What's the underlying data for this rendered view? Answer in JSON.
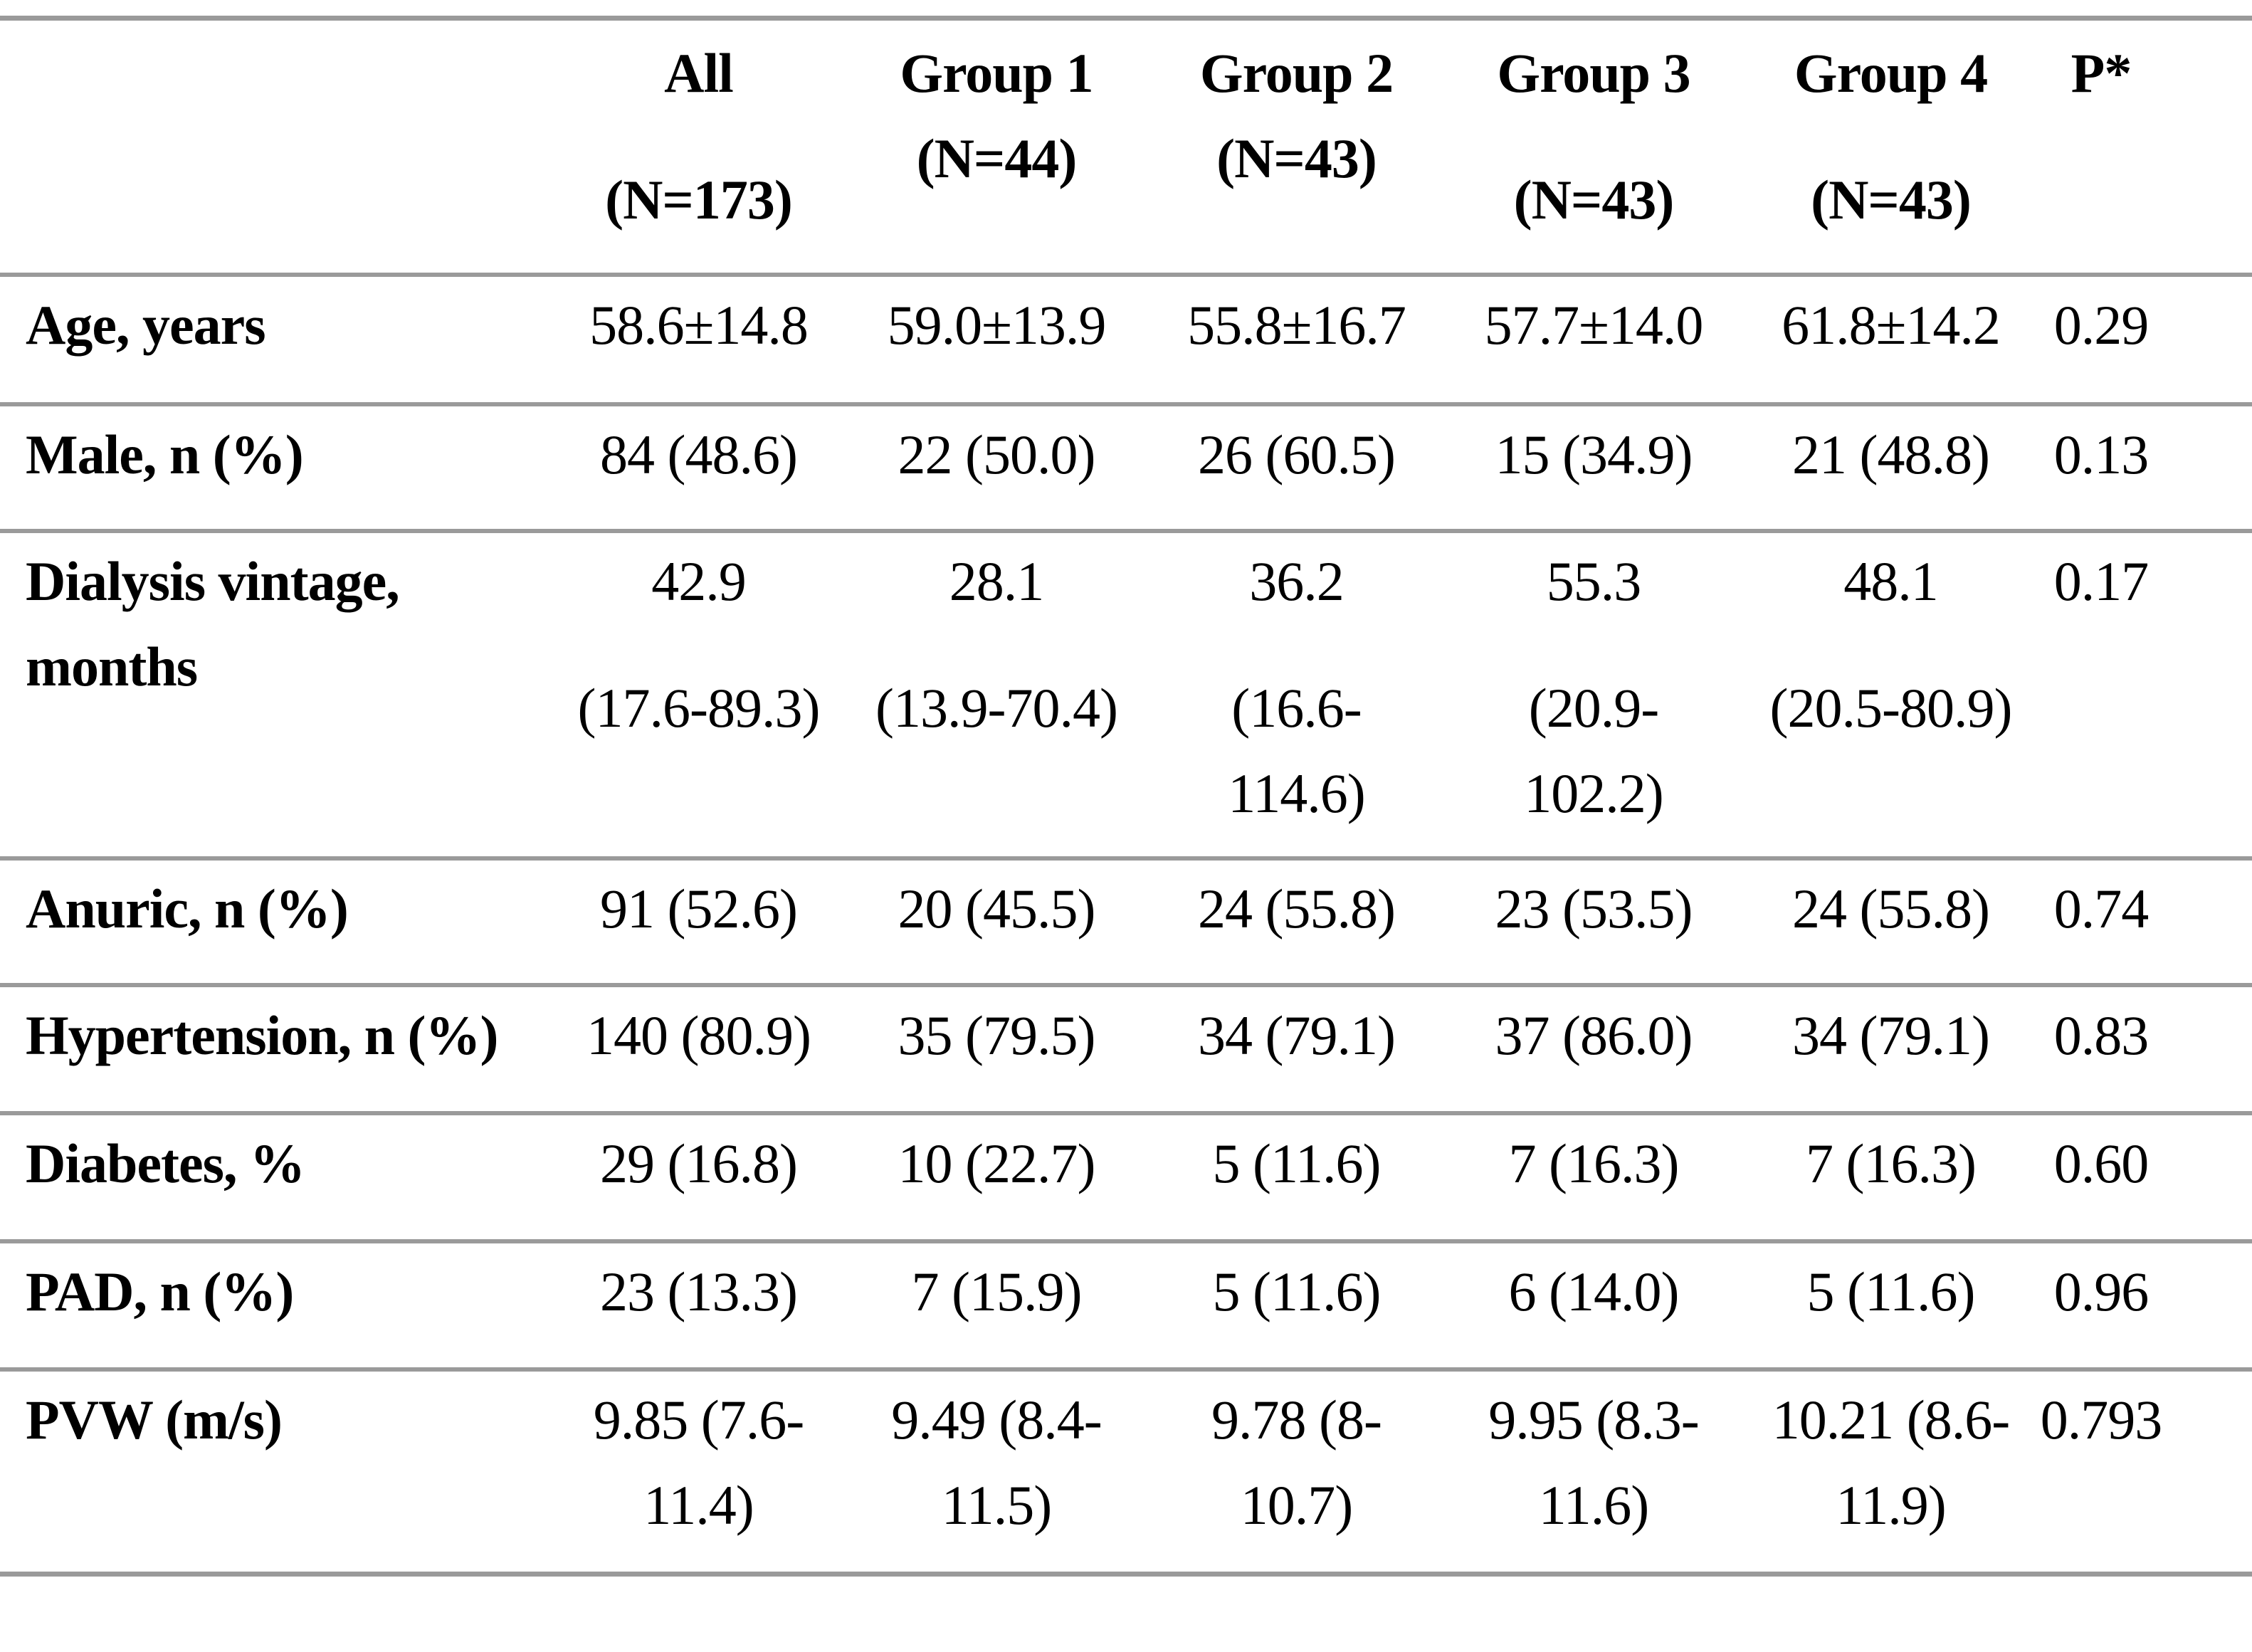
{
  "table": {
    "description": "Baseline characteristics table",
    "border_color": "#9a9a9a",
    "columns": [
      {
        "key": "all",
        "name": "All",
        "n": "(N=173)",
        "n_position": "low"
      },
      {
        "key": "group1",
        "name": "Group 1",
        "n": "(N=44)",
        "n_position": "high"
      },
      {
        "key": "group2",
        "name": "Group 2",
        "n": "(N=43)",
        "n_position": "high"
      },
      {
        "key": "group3",
        "name": "Group 3",
        "n": "(N=43)",
        "n_position": "low"
      },
      {
        "key": "group4",
        "name": "Group 4",
        "n": "(N=43)",
        "n_position": "low"
      },
      {
        "key": "p",
        "name": "P*",
        "n": "",
        "n_position": "none"
      }
    ],
    "rows": [
      {
        "key": "age",
        "label_lines": [
          "Age, years"
        ],
        "cells": [
          [
            "58.6±14.8"
          ],
          [
            "59.0±13.9"
          ],
          [
            "55.8±16.7"
          ],
          [
            "57.7±14.0"
          ],
          [
            "61.8±14.2"
          ],
          [
            "0.29"
          ]
        ]
      },
      {
        "key": "male",
        "label_lines": [
          "Male, n (%)"
        ],
        "cells": [
          [
            "84 (48.6)"
          ],
          [
            "22 (50.0)"
          ],
          [
            "26 (60.5)"
          ],
          [
            "15 (34.9)"
          ],
          [
            "21 (48.8)"
          ],
          [
            "0.13"
          ]
        ]
      },
      {
        "key": "dialysis-vintage",
        "label_lines": [
          "Dialysis vintage,",
          "months"
        ],
        "cells": [
          [
            "42.9",
            "(17.6-89.3)"
          ],
          [
            "28.1",
            "(13.9-70.4)"
          ],
          [
            "36.2",
            "(16.6-",
            "114.6)"
          ],
          [
            "55.3",
            "(20.9-",
            "102.2)"
          ],
          [
            "48.1",
            "(20.5-80.9)"
          ],
          [
            "0.17"
          ]
        ]
      },
      {
        "key": "anuric",
        "label_lines": [
          "Anuric, n (%)"
        ],
        "cells": [
          [
            "91 (52.6)"
          ],
          [
            "20 (45.5)"
          ],
          [
            "24 (55.8)"
          ],
          [
            "23 (53.5)"
          ],
          [
            "24 (55.8)"
          ],
          [
            "0.74"
          ]
        ]
      },
      {
        "key": "hypertension",
        "label_lines": [
          "Hypertension, n (%)"
        ],
        "cells": [
          [
            "140 (80.9)"
          ],
          [
            "35 (79.5)"
          ],
          [
            "34 (79.1)"
          ],
          [
            "37 (86.0)"
          ],
          [
            "34 (79.1)"
          ],
          [
            "0.83"
          ]
        ]
      },
      {
        "key": "diabetes",
        "label_lines": [
          "Diabetes, %"
        ],
        "cells": [
          [
            "29 (16.8)"
          ],
          [
            "10 (22.7)"
          ],
          [
            "5 (11.6)"
          ],
          [
            "7 (16.3)"
          ],
          [
            "7 (16.3)"
          ],
          [
            "0.60"
          ]
        ]
      },
      {
        "key": "pad",
        "label_lines": [
          "PAD, n (%)"
        ],
        "cells": [
          [
            "23 (13.3)"
          ],
          [
            "7 (15.9)"
          ],
          [
            "5 (11.6)"
          ],
          [
            "6 (14.0)"
          ],
          [
            "5 (11.6)"
          ],
          [
            "0.96"
          ]
        ]
      },
      {
        "key": "pvw",
        "label_lines": [
          "PVW (m/s)"
        ],
        "cells": [
          [
            "9.85 (7.6-",
            "11.4)"
          ],
          [
            "9.49 (8.4-",
            "11.5)"
          ],
          [
            "9.78 (8-",
            "10.7)"
          ],
          [
            "9.95 (8.3-",
            "11.6)"
          ],
          [
            "10.21 (8.6-",
            "11.9)"
          ],
          [
            "0.793"
          ]
        ]
      }
    ]
  }
}
